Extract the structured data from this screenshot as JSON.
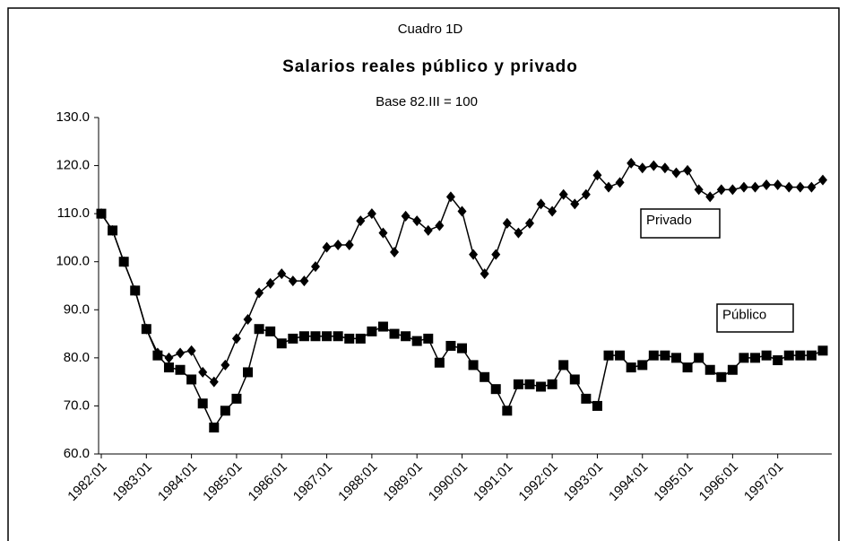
{
  "chart_data": {
    "type": "line",
    "supertitle": "Cuadro 1D",
    "title": "Salarios reales público y privado",
    "subtitle": "Base 82.III = 100",
    "categories": [
      "1982:01",
      null,
      null,
      null,
      "1983:01",
      null,
      null,
      null,
      "1984:01",
      null,
      null,
      null,
      "1985:01",
      null,
      null,
      null,
      "1986:01",
      null,
      null,
      null,
      "1987:01",
      null,
      null,
      null,
      "1988:01",
      null,
      null,
      null,
      "1989:01",
      null,
      null,
      null,
      "1990:01",
      null,
      null,
      null,
      "1991:01",
      null,
      null,
      null,
      "1992:01",
      null,
      null,
      null,
      "1993:01",
      null,
      null,
      null,
      "1994:01",
      null,
      null,
      null,
      "1995:01",
      null,
      null,
      null,
      "1996:01",
      null,
      null,
      null,
      "1997:01",
      null,
      null,
      null,
      null
    ],
    "series": [
      {
        "name": "Privado",
        "color": "#000000",
        "marker": "diamond",
        "values": [
          110,
          106.5,
          100,
          94,
          86,
          81,
          80,
          81,
          81.5,
          77,
          75,
          78.5,
          84,
          88,
          93.5,
          95.5,
          97.5,
          96,
          96,
          99,
          103,
          103.5,
          103.5,
          108.5,
          110,
          106,
          102,
          109.5,
          108.5,
          106.5,
          107.5,
          113.5,
          110.5,
          101.5,
          97.5,
          101.5,
          108,
          106,
          108,
          112,
          110.5,
          114,
          112,
          114,
          118,
          115.5,
          116.5,
          120.5,
          119.5,
          120,
          119.5,
          118.5,
          119,
          115,
          113.5,
          115,
          115,
          115.5,
          115.5,
          116,
          116,
          115.5,
          115.5,
          115.5,
          117
        ]
      },
      {
        "name": "Público",
        "color": "#000000",
        "marker": "square",
        "values": [
          110,
          106.5,
          100,
          94,
          86,
          80.5,
          78,
          77.5,
          75.5,
          70.5,
          65.5,
          69,
          71.5,
          77,
          86,
          85.5,
          83,
          84,
          84.5,
          84.5,
          84.5,
          84.5,
          84,
          84,
          85.5,
          86.5,
          85,
          84.5,
          83.5,
          84,
          79,
          82.5,
          82,
          78.5,
          76,
          73.5,
          69,
          74.5,
          74.5,
          74,
          74.5,
          78.5,
          75.5,
          71.5,
          70,
          80.5,
          80.5,
          78,
          78.5,
          80.5,
          80.5,
          80,
          78,
          80,
          77.5,
          76,
          77.5,
          80,
          80,
          80.5,
          79.5,
          80.5,
          80.5,
          80.5,
          81.5
        ]
      }
    ],
    "ylim": [
      60,
      130
    ],
    "yticks": [
      {
        "value": 60,
        "label": "60.0"
      },
      {
        "value": 70,
        "label": "70.0"
      },
      {
        "value": 80,
        "label": "80.0"
      },
      {
        "value": 90,
        "label": "90.0"
      },
      {
        "value": 100,
        "label": "100.0"
      },
      {
        "value": 110,
        "label": "110.0"
      },
      {
        "value": 120,
        "label": "120.0"
      },
      {
        "value": 130,
        "label": "130.0"
      }
    ],
    "grid": false
  }
}
